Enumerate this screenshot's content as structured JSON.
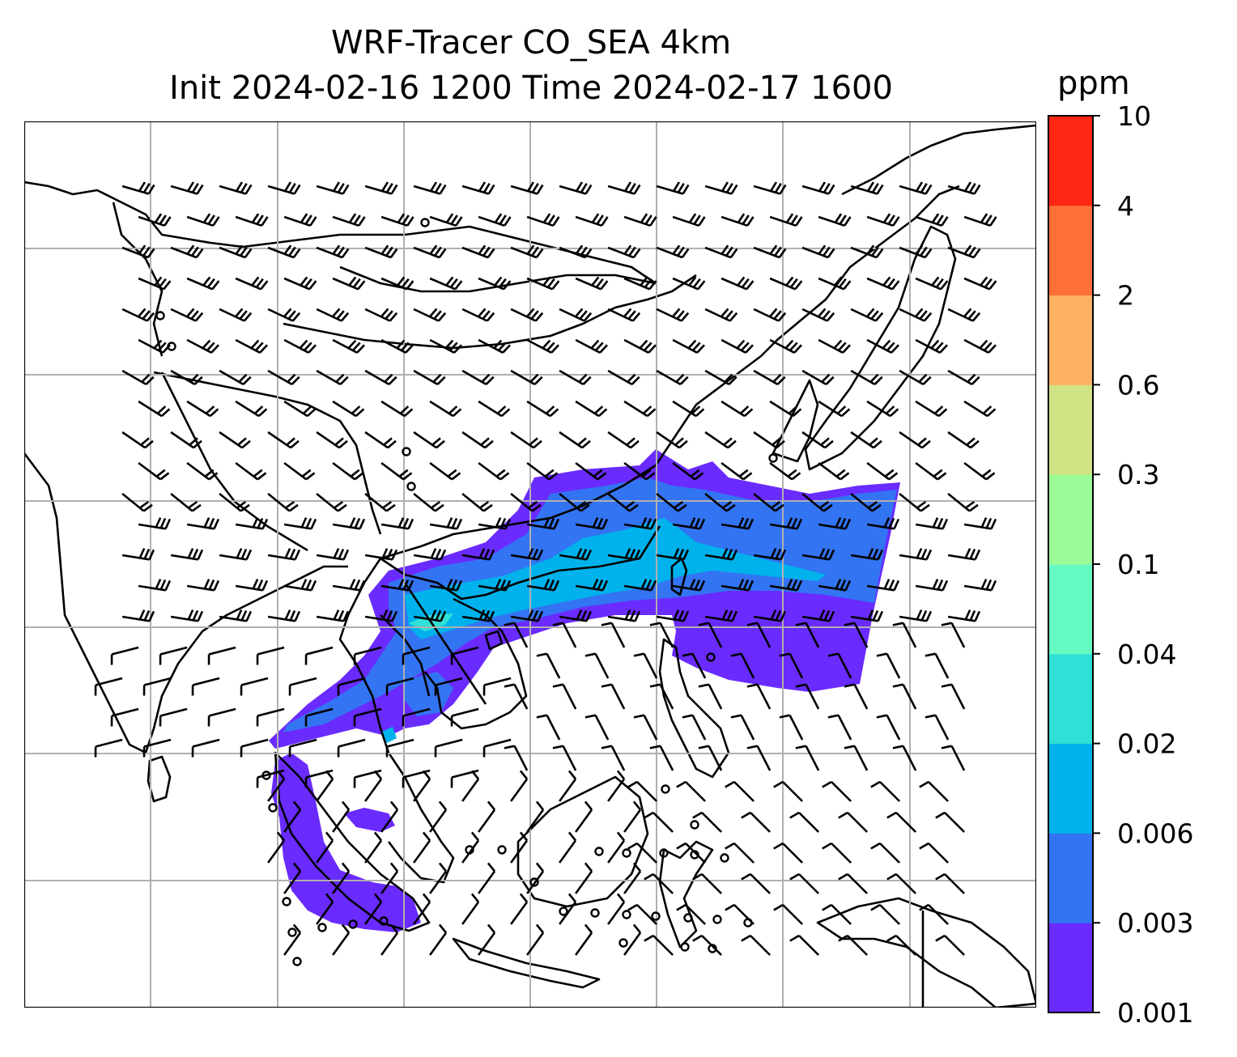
{
  "chart_data": {
    "type": "heatmap",
    "title": "WRF-Tracer CO_SEA 4km",
    "subtitle": "Init 2024-02-16 1200 Time 2024-02-17 1600",
    "colorbar": {
      "label": "ppm",
      "ticks": [
        "0.001",
        "0.003",
        "0.006",
        "0.02",
        "0.04",
        "0.1",
        "0.3",
        "0.6",
        "2",
        "4",
        "10"
      ],
      "colors": [
        "#6a2bff",
        "#3374f3",
        "#00b2ec",
        "#30dfd6",
        "#67fbc4",
        "#9bfc97",
        "#d0e385",
        "#fdb162",
        "#ff7038",
        "#ff2713"
      ]
    },
    "map": {
      "projection": "plate carree with lat/lon gridlines",
      "grid": true,
      "overlays": [
        "coastlines",
        "country borders",
        "wind barbs"
      ],
      "plume": "CO tracer plume from Southeast Asia stretching east-northeast over South China toward Taiwan and the western Pacific; secondary band over Sumatra"
    }
  }
}
